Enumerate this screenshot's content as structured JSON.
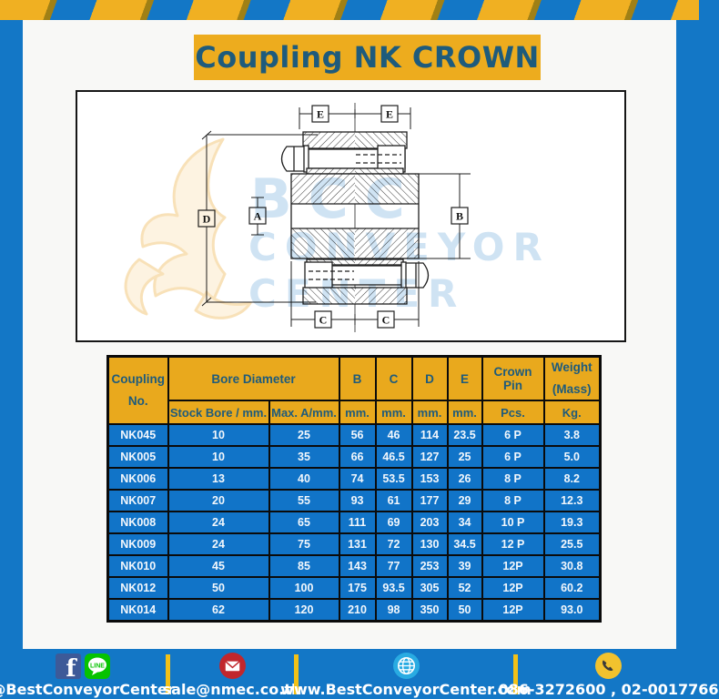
{
  "title": "Coupling NK CROWN",
  "diagram": {
    "dim_labels": {
      "e1": "E",
      "e2": "E",
      "d": "D",
      "a": "A",
      "b": "B",
      "c1": "C",
      "c2": "C"
    },
    "watermark": {
      "line1": "BCC",
      "line2": "CONVEYOR",
      "line3": "CENTER"
    }
  },
  "table": {
    "headers": {
      "coupling_line1": "Coupling",
      "coupling_line2": "No.",
      "bore_diameter": "Bore Diameter",
      "b": "B",
      "c": "C",
      "d": "D",
      "e": "E",
      "crown_pin": "Crown Pin",
      "weight_line1": "Weight",
      "weight_line2": "(Mass)",
      "sub_stock_bore": "Stock Bore / mm.",
      "sub_max_a": "Max. A/mm.",
      "sub_mm": "mm.",
      "sub_pcs": "Pcs.",
      "sub_kg": "Kg."
    },
    "rows": [
      [
        "NK045",
        "10",
        "25",
        "56",
        "46",
        "114",
        "23.5",
        "6 P",
        "3.8"
      ],
      [
        "NK005",
        "10",
        "35",
        "66",
        "46.5",
        "127",
        "25",
        "6 P",
        "5.0"
      ],
      [
        "NK006",
        "13",
        "40",
        "74",
        "53.5",
        "153",
        "26",
        "8 P",
        "8.2"
      ],
      [
        "NK007",
        "20",
        "55",
        "93",
        "61",
        "177",
        "29",
        "8 P",
        "12.3"
      ],
      [
        "NK008",
        "24",
        "65",
        "111",
        "69",
        "203",
        "34",
        "10 P",
        "19.3"
      ],
      [
        "NK009",
        "24",
        "75",
        "131",
        "72",
        "130",
        "34.5",
        "12 P",
        "25.5"
      ],
      [
        "NK010",
        "45",
        "85",
        "143",
        "77",
        "253",
        "39",
        "12P",
        "30.8"
      ],
      [
        "NK012",
        "50",
        "100",
        "175",
        "93.5",
        "305",
        "52",
        "12P",
        "60.2"
      ],
      [
        "NK014",
        "62",
        "120",
        "210",
        "98",
        "350",
        "50",
        "12P",
        "93.0"
      ]
    ]
  },
  "footer": {
    "social_handle": "@BestConveyorCenter",
    "line_icon_label": "LINE",
    "email": "sale@nmec.co.th",
    "website": "www.BestConveyorCenter.com",
    "phone_numbers": "086-3272600 , 02-0017766"
  },
  "colors": {
    "frame_blue": "#1377C6",
    "accent_yellow": "#EDAC1E",
    "stripe_shadow": "#A08015",
    "header_text": "#1E5B7C",
    "table_row_blue": "#1174C8",
    "facebook_blue": "#3D5A98",
    "line_green": "#06C300",
    "email_red": "#C1272D",
    "globe_blue": "#29ABE2",
    "phone_yellow": "#F2C22E"
  }
}
